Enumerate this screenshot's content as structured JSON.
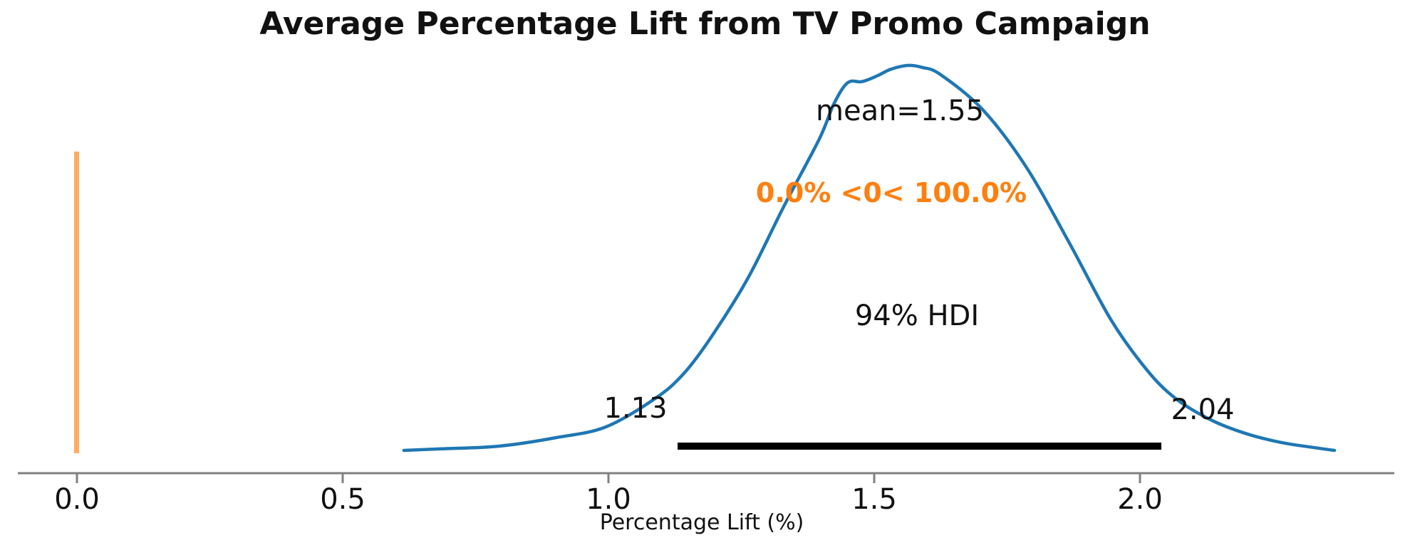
{
  "title": "Average Percentage Lift from TV Promo Campaign",
  "axis": {
    "xlabel": "Percentage Lift (%)",
    "ticks": [
      "0.0",
      "0.5",
      "1.0",
      "1.5",
      "2.0"
    ]
  },
  "annotations": {
    "mean": "mean=1.55",
    "ref_val": "0.0% <0< 100.0%",
    "hdi": "94% HDI",
    "hdi_lower": "1.13",
    "hdi_upper": "2.04"
  },
  "colors": {
    "kde_line": "#1f77b4",
    "ref_line": "#ffac62",
    "ref_text": "#ff7f0e",
    "hdi_bar": "#000000",
    "axis": "#808080",
    "text": "#111111"
  },
  "chart_data": {
    "type": "line",
    "subtype": "kde-posterior",
    "title": "Average Percentage Lift from TV Promo Campaign",
    "xlabel": "Percentage Lift (%)",
    "x_ticks": [
      0.0,
      0.5,
      1.0,
      1.5,
      2.0
    ],
    "xlim": [
      -0.11,
      2.48
    ],
    "grid": false,
    "mean": 1.55,
    "hdi_interval": "94%",
    "hdi_lower": 1.13,
    "hdi_upper": 2.04,
    "ref_value": 0,
    "pct_below_ref": 0.0,
    "pct_above_ref": 100.0,
    "kde": {
      "x": [
        0.615,
        0.686,
        0.794,
        0.901,
        0.995,
        1.088,
        1.142,
        1.196,
        1.263,
        1.33,
        1.397,
        1.424,
        1.45,
        1.477,
        1.504,
        1.531,
        1.562,
        1.59,
        1.625,
        1.705,
        1.786,
        1.866,
        1.946,
        2.013,
        2.067,
        2.134,
        2.201,
        2.268,
        2.335,
        2.366
      ],
      "density": [
        0.0,
        0.004,
        0.011,
        0.033,
        0.061,
        0.135,
        0.2,
        0.3,
        0.449,
        0.634,
        0.81,
        0.9,
        0.955,
        0.958,
        0.972,
        0.99,
        1.0,
        0.995,
        0.976,
        0.884,
        0.736,
        0.542,
        0.338,
        0.209,
        0.135,
        0.079,
        0.043,
        0.02,
        0.006,
        0.0
      ]
    }
  }
}
